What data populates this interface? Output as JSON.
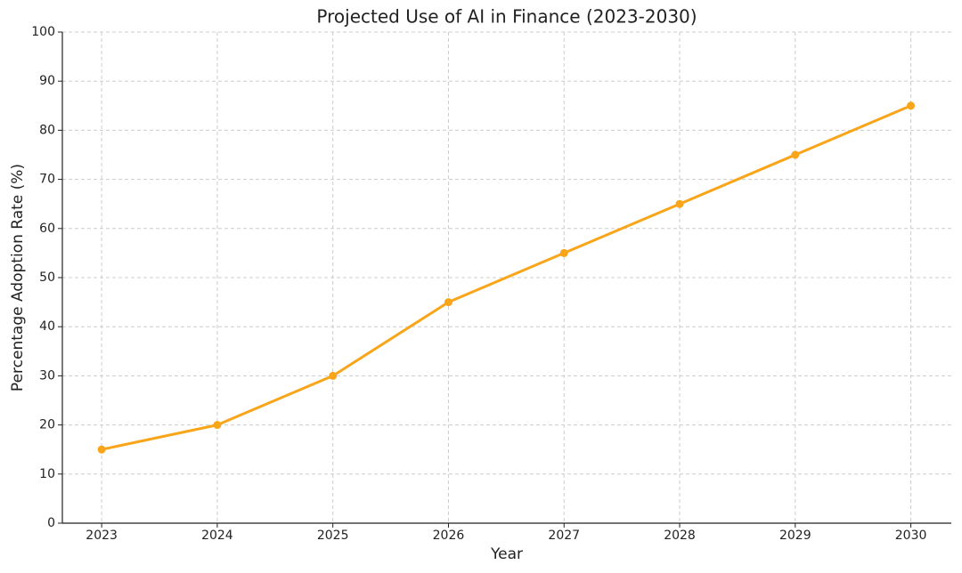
{
  "chart_data": {
    "type": "line",
    "title": "Projected Use of AI in Finance (2023-2030)",
    "xlabel": "Year",
    "ylabel": "Percentage Adoption Rate (%)",
    "x": [
      2023,
      2024,
      2025,
      2026,
      2027,
      2028,
      2029,
      2030
    ],
    "values": [
      15,
      20,
      30,
      45,
      55,
      65,
      75,
      85
    ],
    "color": "#f9a51a",
    "xlim": [
      2022.66,
      2030.35
    ],
    "xticks": [
      2023,
      2024,
      2025,
      2026,
      2027,
      2028,
      2029,
      2030
    ],
    "ylim": [
      0,
      100
    ],
    "yticks": [
      0,
      10,
      20,
      30,
      40,
      50,
      60,
      70,
      80,
      90,
      100
    ],
    "grid": true
  }
}
